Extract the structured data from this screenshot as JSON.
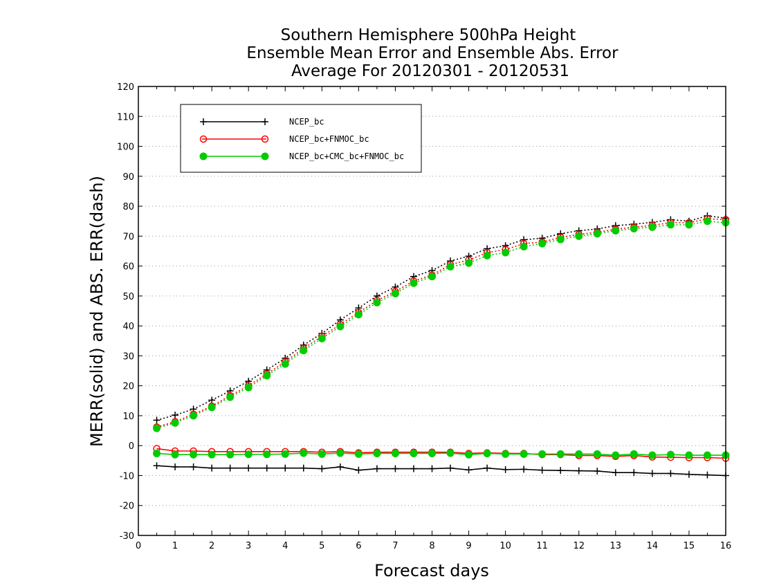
{
  "chart_data": {
    "type": "line",
    "title": [
      "Southern Hemisphere 500hPa Height",
      "Ensemble Mean Error and Ensemble Abs. Error",
      "Average For 20120301 - 20120531"
    ],
    "xlabel": "Forecast days",
    "ylabel": "MERR(solid) and ABS. ERR(dash)",
    "xlim": [
      0,
      16
    ],
    "ylim": [
      -30,
      120
    ],
    "xticks": [
      "0",
      "1",
      "2",
      "3",
      "4",
      "5",
      "6",
      "7",
      "8",
      "9",
      "10",
      "11",
      "12",
      "13",
      "14",
      "15",
      "16"
    ],
    "yticks": [
      "120",
      "110",
      "100",
      "90",
      "80",
      "70",
      "60",
      "50",
      "40",
      "30",
      "20",
      "10",
      "0",
      "-10",
      "-20",
      "-30"
    ],
    "grid": "horizontal dotted",
    "legend_position": "top-left",
    "x": [
      0.5,
      1,
      1.5,
      2,
      2.5,
      3,
      3.5,
      4,
      4.5,
      5,
      5.5,
      6,
      6.5,
      7,
      7.5,
      8,
      8.5,
      9,
      9.5,
      10,
      10.5,
      11,
      11.5,
      12,
      12.5,
      13,
      13.5,
      14,
      14.5,
      15,
      15.5,
      16
    ],
    "series": [
      {
        "name": "NCEP_bc",
        "color": "#000000",
        "marker": "plus",
        "merr": [
          -6.7,
          -7.1,
          -7.1,
          -7.5,
          -7.5,
          -7.5,
          -7.5,
          -7.5,
          -7.5,
          -7.7,
          -7.1,
          -8.2,
          -7.7,
          -7.7,
          -7.7,
          -7.7,
          -7.5,
          -8.1,
          -7.5,
          -8.0,
          -7.9,
          -8.2,
          -8.3,
          -8.4,
          -8.5,
          -9.0,
          -9.0,
          -9.3,
          -9.3,
          -9.6,
          -9.8,
          -10.0
        ],
        "abs_err": [
          8.5,
          10.2,
          12.2,
          15.2,
          18.3,
          21.5,
          25.3,
          29.2,
          33.6,
          37.5,
          42.0,
          46.0,
          50.0,
          53.0,
          56.5,
          58.5,
          61.7,
          63.3,
          65.8,
          66.8,
          68.8,
          69.3,
          70.8,
          71.8,
          72.4,
          73.5,
          74.0,
          74.6,
          75.5,
          75.0,
          76.8,
          76.0
        ]
      },
      {
        "name": "NCEP_bc+FNMOC_bc",
        "color": "#ff0000",
        "marker": "circle-open",
        "merr": [
          -1.0,
          -1.8,
          -1.8,
          -2.0,
          -2.0,
          -2.0,
          -2.0,
          -2.0,
          -2.0,
          -2.2,
          -2.0,
          -2.4,
          -2.2,
          -2.2,
          -2.2,
          -2.2,
          -2.2,
          -2.6,
          -2.4,
          -2.6,
          -2.6,
          -3.0,
          -3.0,
          -3.3,
          -3.3,
          -3.6,
          -3.3,
          -3.8,
          -3.9,
          -4.0,
          -4.0,
          -4.2
        ],
        "abs_err": [
          6.2,
          8.0,
          10.5,
          13.2,
          16.7,
          20.0,
          24.0,
          28.0,
          32.5,
          36.5,
          40.5,
          44.5,
          48.5,
          51.5,
          55.0,
          57.0,
          60.5,
          62.0,
          64.5,
          65.5,
          67.5,
          68.0,
          69.6,
          70.6,
          71.3,
          72.3,
          73.0,
          73.6,
          74.5,
          74.5,
          75.8,
          75.5
        ]
      },
      {
        "name": "NCEP_bc+CMC_bc+FNMOC_bc",
        "color": "#00cc00",
        "marker": "circle-filled",
        "merr": [
          -2.6,
          -3.0,
          -3.0,
          -3.0,
          -3.0,
          -2.9,
          -2.9,
          -2.8,
          -2.5,
          -2.8,
          -2.5,
          -2.8,
          -2.6,
          -2.6,
          -2.6,
          -2.6,
          -2.5,
          -3.0,
          -2.6,
          -2.8,
          -2.8,
          -2.8,
          -2.8,
          -2.8,
          -2.8,
          -3.2,
          -2.8,
          -3.2,
          -3.0,
          -3.2,
          -3.2,
          -3.2
        ],
        "abs_err": [
          5.8,
          7.6,
          10.0,
          12.8,
          16.2,
          19.4,
          23.4,
          27.3,
          31.8,
          35.8,
          39.8,
          43.8,
          47.8,
          50.8,
          54.3,
          56.5,
          59.8,
          61.0,
          63.5,
          64.5,
          66.5,
          67.5,
          68.9,
          70.0,
          70.8,
          71.8,
          72.5,
          73.0,
          73.8,
          73.8,
          75.0,
          74.5
        ]
      }
    ]
  }
}
